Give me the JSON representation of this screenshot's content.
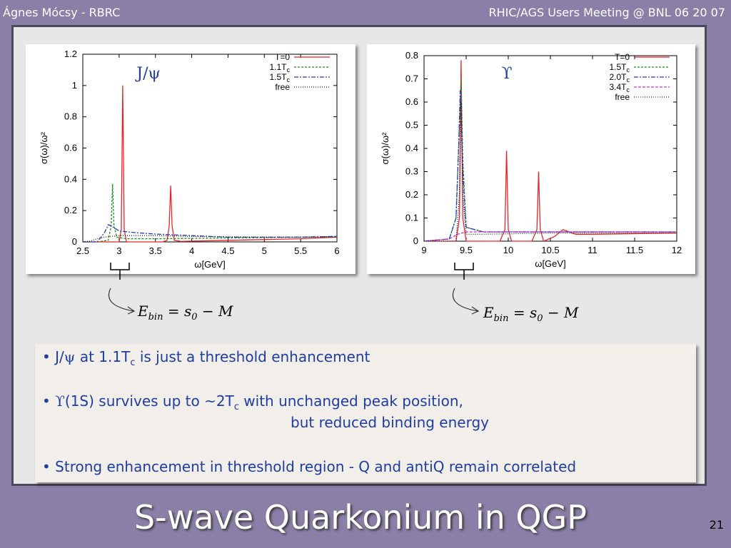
{
  "header": {
    "author": "Ágnes Mócsy - RBRC",
    "event": "RHIC/AGS Users Meeting @ BNL  06 20 07"
  },
  "formula": {
    "E": "E",
    "sub": "bin",
    "rest": " = s",
    "zero": "0",
    "tail": " − M"
  },
  "bullets": [
    {
      "prefix": "• J/",
      "sym": "ψ",
      "mid": " at 1.1T",
      "sub": "c",
      "rest": " is just a threshold enhancement"
    },
    {
      "prefix": "• ",
      "sym": "ϒ",
      "mid": "(1S) survives up to ~2T",
      "sub": "c",
      "rest": " with unchanged peak position,"
    },
    {
      "text": "but reduced binding energy"
    },
    {
      "text": "• Strong enhancement in threshold region - Q and antiQ remain correlated"
    }
  ],
  "title": "S-wave Quarkonium in QGP",
  "page_number": "21",
  "colors": {
    "T0": "#e8242a",
    "green": "#1a8c1a",
    "blue": "#2a38c8",
    "magenta": "#d030d0",
    "free": "#222222",
    "text_blue": "#1f3da0"
  },
  "chart_data": [
    {
      "type": "line",
      "name_label": "J/ψ",
      "xlabel": "ω[GeV]",
      "ylabel": "σ(ω)/ω²",
      "xlim": [
        2.5,
        6
      ],
      "ylim": [
        0,
        1.2
      ],
      "xticks": [
        "2.5",
        "3",
        "3.5",
        "4",
        "4.5",
        "5",
        "5.5",
        "6"
      ],
      "yticks": [
        "0",
        "0.2",
        "0.4",
        "0.6",
        "0.8",
        "1",
        "1.2"
      ],
      "legend_position": "top-right",
      "series": [
        {
          "name": "T=0",
          "color_key": "T0",
          "dash": "",
          "x": [
            2.5,
            2.9,
            3.0,
            3.03,
            3.05,
            3.07,
            3.1,
            3.2,
            3.6,
            3.66,
            3.69,
            3.71,
            3.73,
            3.76,
            3.85,
            4.5,
            5.5,
            6.0
          ],
          "y": [
            0,
            0,
            0,
            0.08,
            1.0,
            0.08,
            0,
            0,
            0,
            0.01,
            0.1,
            0.36,
            0.1,
            0.01,
            0.003,
            0.01,
            0.02,
            0.03
          ]
        },
        {
          "name": "1.1T",
          "sub": "c",
          "color_key": "green",
          "dash": "3,2",
          "x": [
            2.5,
            2.7,
            2.85,
            2.89,
            2.91,
            2.93,
            2.97,
            3.1,
            3.5,
            4.5,
            5.5,
            6.0
          ],
          "y": [
            0,
            0,
            0.01,
            0.1,
            0.37,
            0.1,
            0.03,
            0.02,
            0.02,
            0.025,
            0.03,
            0.035
          ]
        },
        {
          "name": "1.5T",
          "sub": "c",
          "color_key": "blue",
          "dash": "6,2,2,2",
          "x": [
            2.5,
            2.7,
            2.8,
            2.85,
            2.9,
            3.0,
            3.2,
            3.5,
            4.0,
            4.5,
            5.0,
            5.5,
            6.0
          ],
          "y": [
            0,
            0,
            0.06,
            0.11,
            0.1,
            0.07,
            0.06,
            0.05,
            0.04,
            0.03,
            0.03,
            0.03,
            0.035
          ]
        },
        {
          "name": "free",
          "color_key": "free",
          "dash": "1,2",
          "x": [
            2.5,
            2.6,
            2.7,
            2.8,
            3.0,
            3.5,
            4.0,
            5.0,
            6.0
          ],
          "y": [
            0,
            0.005,
            0.02,
            0.03,
            0.04,
            0.04,
            0.035,
            0.03,
            0.03
          ]
        }
      ]
    },
    {
      "type": "line",
      "name_label": "ϒ",
      "xlabel": "ω[GeV]",
      "ylabel": "σ(ω)/ω²",
      "xlim": [
        9,
        12
      ],
      "ylim": [
        0,
        0.8
      ],
      "xticks": [
        "9",
        "9.5",
        "10",
        "10.5",
        "11",
        "11.5",
        "12"
      ],
      "yticks": [
        "0",
        "0.1",
        "0.2",
        "0.3",
        "0.4",
        "0.5",
        "0.6",
        "0.7",
        "0.8"
      ],
      "legend_position": "top-right",
      "series": [
        {
          "name": "T=0",
          "color_key": "T0",
          "dash": "",
          "x": [
            9,
            9.38,
            9.42,
            9.44,
            9.46,
            9.5,
            9.9,
            9.96,
            9.98,
            10.0,
            10.04,
            10.28,
            10.34,
            10.36,
            10.38,
            10.42,
            10.55,
            10.65,
            10.8,
            11.0,
            12.0
          ],
          "y": [
            0,
            0,
            0.1,
            0.78,
            0.1,
            0,
            0,
            0.05,
            0.39,
            0.05,
            0,
            0,
            0.05,
            0.3,
            0.05,
            0,
            0.02,
            0.05,
            0.03,
            0.03,
            0.035
          ]
        },
        {
          "name": "1.5T",
          "sub": "c",
          "color_key": "green",
          "dash": "3,2",
          "x": [
            9,
            9.3,
            9.38,
            9.42,
            9.44,
            9.46,
            9.5,
            9.7,
            10.5,
            11.5,
            12.0
          ],
          "y": [
            0,
            0.01,
            0.1,
            0.5,
            0.7,
            0.35,
            0.06,
            0.04,
            0.04,
            0.04,
            0.04
          ]
        },
        {
          "name": "2.0T",
          "sub": "c",
          "color_key": "blue",
          "dash": "6,2,2,2",
          "x": [
            9,
            9.3,
            9.38,
            9.41,
            9.43,
            9.46,
            9.5,
            9.7,
            10.5,
            11.5,
            12.0
          ],
          "y": [
            0,
            0.01,
            0.1,
            0.4,
            0.65,
            0.3,
            0.06,
            0.04,
            0.04,
            0.04,
            0.04
          ]
        },
        {
          "name": "3.4T",
          "sub": "c",
          "color_key": "magenta",
          "dash": "4,2",
          "x": [
            9,
            9.3,
            9.4,
            9.5,
            9.6,
            9.8,
            10.5,
            11.5,
            12.0
          ],
          "y": [
            0,
            0.01,
            0.03,
            0.04,
            0.04,
            0.04,
            0.04,
            0.04,
            0.04
          ]
        },
        {
          "name": "free",
          "color_key": "free",
          "dash": "1,2",
          "x": [
            9,
            9.38,
            9.42,
            9.44,
            9.46,
            9.5,
            9.7,
            10.5,
            12.0
          ],
          "y": [
            0,
            0,
            0.2,
            0.6,
            0.2,
            0.03,
            0.03,
            0.035,
            0.035
          ]
        }
      ]
    }
  ]
}
